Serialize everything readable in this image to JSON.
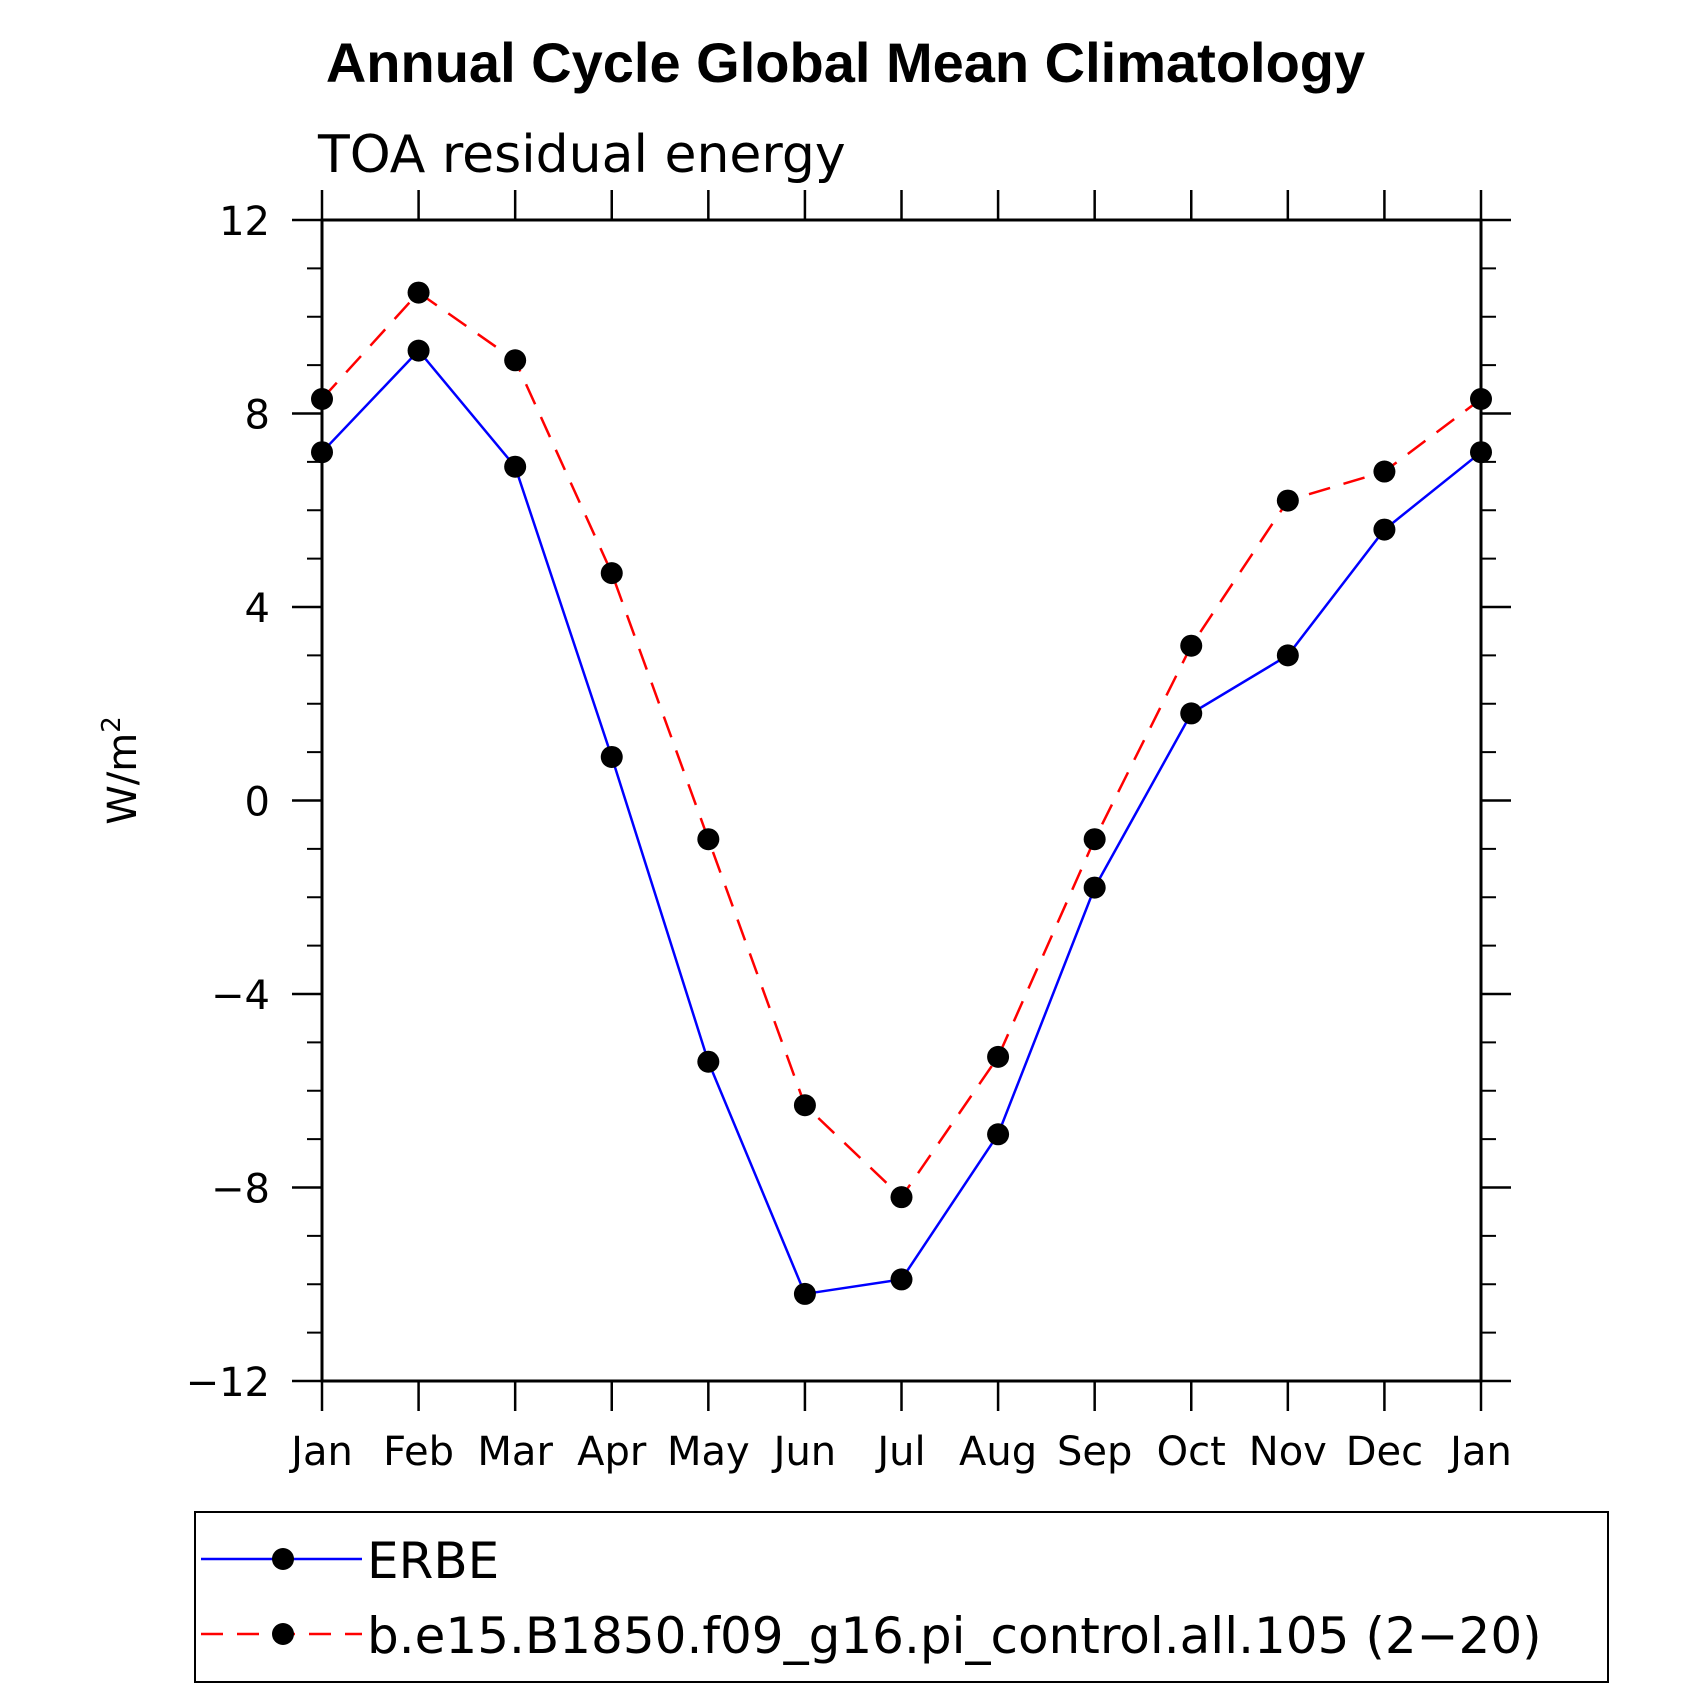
{
  "chart_data": {
    "type": "line",
    "title": "Annual Cycle Global Mean Climatology",
    "subtitle": "TOA residual energy",
    "ylabel": "W/m",
    "ylabel_superscript": "2",
    "ylim": [
      -12,
      12
    ],
    "yticks": [
      {
        "v": 12,
        "label": "12"
      },
      {
        "v": 8,
        "label": "8"
      },
      {
        "v": 4,
        "label": "4"
      },
      {
        "v": 0,
        "label": "0"
      },
      {
        "v": -4,
        "label": "−4"
      },
      {
        "v": -8,
        "label": "−8"
      },
      {
        "v": -12,
        "label": "−12"
      }
    ],
    "categories": [
      "Jan",
      "Feb",
      "Mar",
      "Apr",
      "May",
      "Jun",
      "Jul",
      "Aug",
      "Sep",
      "Oct",
      "Nov",
      "Dec",
      "Jan"
    ],
    "grid": false,
    "legend_position": "bottom",
    "series": [
      {
        "name": "ERBE",
        "color": "#0000ff",
        "dash": "solid",
        "values": [
          7.2,
          9.3,
          6.9,
          0.9,
          -5.4,
          -10.2,
          -9.9,
          -6.9,
          -1.8,
          1.8,
          3.0,
          5.6,
          7.2
        ]
      },
      {
        "name": "b.e15.B1850.f09_g16.pi_control.all.105 (2−20)",
        "color": "#ff0000",
        "dash": "dashed",
        "values": [
          8.3,
          10.5,
          9.1,
          4.7,
          -0.8,
          -6.3,
          -8.2,
          -5.3,
          -0.8,
          3.2,
          6.2,
          6.8,
          8.3
        ]
      }
    ]
  }
}
